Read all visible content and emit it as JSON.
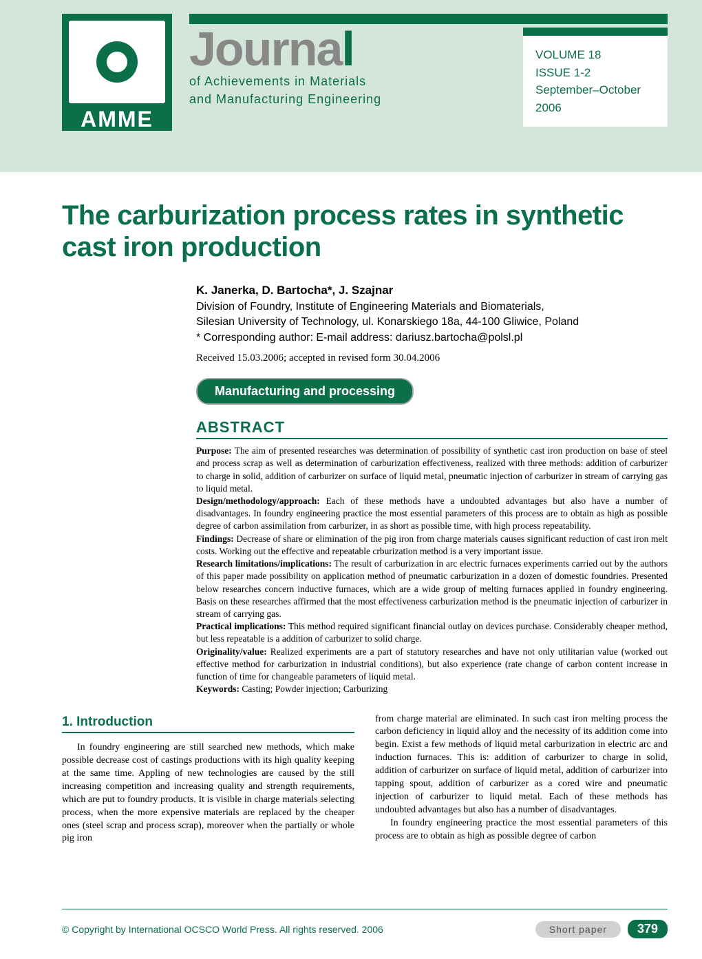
{
  "colors": {
    "primary": "#0b6f4a",
    "header_bg": "#d4e6d9",
    "gray_text": "#888888",
    "border": "#aaaaaa"
  },
  "logo": {
    "acronym": "AMME"
  },
  "journal": {
    "title_main": "Journa",
    "title_accent": "l",
    "subtitle_line1": "of Achievements in Materials",
    "subtitle_line2": "and Manufacturing Engineering"
  },
  "issue": {
    "volume": "VOLUME 18",
    "issue": "ISSUE 1-2",
    "date": "September–October",
    "year": "2006"
  },
  "article": {
    "title": "The carburization process rates in synthetic cast iron production",
    "authors": "K. Janerka, D. Bartocha*, J. Szajnar",
    "affiliation_line1": "Division of Foundry, Institute of Engineering Materials and Biomaterials,",
    "affiliation_line2": "Silesian University of Technology, ul. Konarskiego 18a, 44-100 Gliwice, Poland",
    "corresponding": "* Corresponding author: E-mail address: dariusz.bartocha@polsl.pl",
    "dates": "Received 15.03.2006; accepted in revised form 30.04.2006",
    "category": "Manufacturing and processing"
  },
  "abstract": {
    "heading": "ABSTRACT",
    "purpose_label": "Purpose:",
    "purpose": " The aim of presented researches was determination of possibility of synthetic cast iron production on base of steel and process scrap as well as determination of carburization effectiveness, realized with three methods: addition of carburizer to charge in solid, addition of carburizer on surface of liquid metal, pneumatic injection of carburizer in stream of carrying gas to liquid metal.",
    "design_label": "Design/methodology/approach:",
    "design": " Each of these methods have a undoubted advantages but also have a number of disadvantages. In foundry engineering practice the most essential parameters of this process are to obtain as high as possible degree of carbon assimilation from carburizer, in as short as possible time, with high process repeatability.",
    "findings_label": "Findings:",
    "findings": " Decrease of share or elimination of the pig iron from charge materials causes significant reduction of cast iron melt costs. Working out the effective and repeatable crburization method is a very important issue.",
    "research_label": "Research limitations/implications:",
    "research": " The result of carburization in arc electric furnaces experiments carried out by the authors of this paper made possibility on application method of pneumatic carburization in a dozen of domestic foundries. Presented below researches concern inductive furnaces, which are a wide group of melting furnaces applied in foundry engineering. Basis on these researches affirmed that the most effectiveness carburization method is the pneumatic injection of carburizer in stream of carrying gas.",
    "practical_label": "Practical implications:",
    "practical": " This method required significant financial outlay on devices purchase. Considerably cheaper method, but less repeatable is a addition of carburizer to solid charge.",
    "originality_label": "Originality/value:",
    "originality": " Realized experiments are a part of statutory researches and have not only utilitarian value (worked out effective method for carburization in industrial conditions), but also experience (rate change of carbon content increase in function of time for changeable parameters of liquid metal.",
    "keywords_label": "Keywords:",
    "keywords": " Casting; Powder injection; Carburizing"
  },
  "body": {
    "section1_heading": "1. Introduction",
    "col1_p1": "In foundry engineering are still searched new methods, which make possible decrease cost of castings productions with its high quality keeping at the same time. Appling of new technologies are caused by the still increasing competition and increasing quality and strength requirements, which are put to foundry products. It is visible in charge materials selecting process, when the more expensive materials are replaced by the cheaper ones (steel scrap and process scrap), moreover when the partially or whole pig iron",
    "col2_p1": "from charge material are eliminated. In such cast iron melting process the carbon deficiency in liquid alloy and the necessity of its addition come into begin. Exist a few methods of liquid metal carburization in electric arc and induction furnaces. This is: addition of carburizer to  charge in solid, addition of carburizer on surface of liquid metal, addition of carburizer into tapping spout, addition of carburizer as a cored wire and pneumatic injection of carburizer to liquid metal. Each of these methods has undoubted advantages but also has a number of disadvantages.",
    "col2_p2": "In foundry engineering practice the most essential parameters of this process are to obtain as high as possible degree of carbon"
  },
  "footer": {
    "copyright": "© Copyright by International OCSCO World Press. All rights reserved. 2006",
    "paper_type": "Short paper",
    "page": "379"
  }
}
